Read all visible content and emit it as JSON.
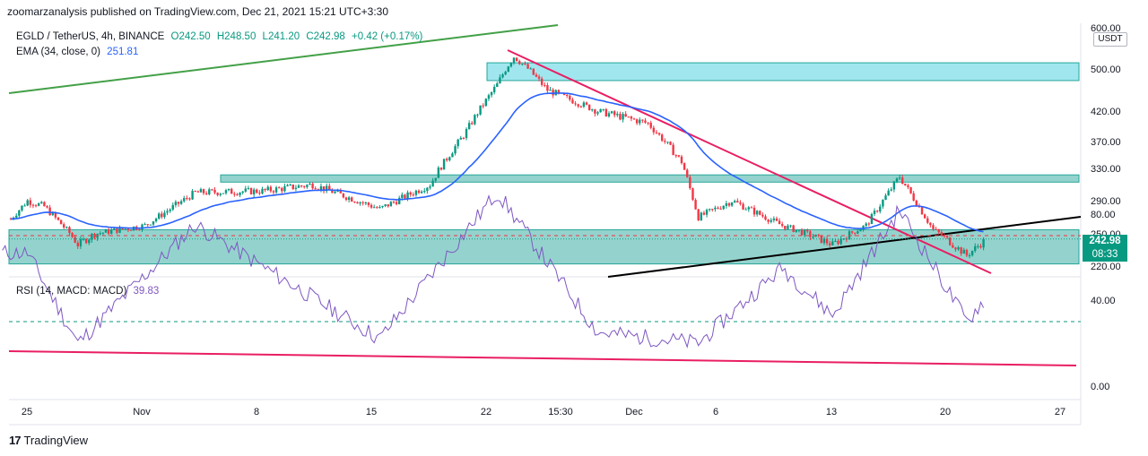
{
  "header": {
    "publisher_line": "zoomarzanalysis published on TradingView.com, Dec 21, 2021 15:21 UTC+3:30"
  },
  "legend": {
    "symbol": "EGLD / TetherUS, 4h, BINANCE",
    "open": "O242.50",
    "high": "H248.50",
    "low": "L241.20",
    "close": "C242.98",
    "change": "+0.42 (+0.17%)",
    "ema_label": "EMA (34, close, 0)",
    "ema_value": "251.81",
    "rsi_label": "RSI (14, MACD: MACD)",
    "rsi_value": "39.83"
  },
  "price_axis": {
    "currency": "USDT",
    "current_price": "242.98",
    "countdown": "08:33",
    "ticks": [
      "600.00",
      "500.00",
      "420.00",
      "370.00",
      "330.00",
      "290.00",
      "250.00",
      "220.00"
    ]
  },
  "rsi_axis": {
    "ticks": [
      "80.00",
      "40.00",
      "0.00"
    ]
  },
  "time_axis": {
    "ticks": [
      "25",
      "Nov",
      "8",
      "15",
      "22",
      "15:30",
      "Dec",
      "6",
      "13",
      "20",
      "27"
    ]
  },
  "footer": {
    "brand": "TradingView"
  },
  "colors": {
    "up": "#089981",
    "down": "#f23645",
    "ema": "#2962ff",
    "rsi": "#7e57c2",
    "zone_cyan": "#80deea",
    "zone_teal": "#4db6ac",
    "trend_pink": "#e91e63",
    "trend_green": "#43a047",
    "trend_black": "#000000"
  },
  "chart_data": {
    "type": "candlestick",
    "symbol": "EGLD / TetherUS",
    "interval": "4h",
    "ylim": [
      215,
      600
    ],
    "price_key_points": [
      {
        "x": "Oct 24",
        "close": 268
      },
      {
        "x": "Oct 25",
        "close": 290
      },
      {
        "x": "Oct 26",
        "close": 283
      },
      {
        "x": "Oct 27",
        "close": 262
      },
      {
        "x": "Oct 28",
        "close": 240
      },
      {
        "x": "Oct 29",
        "close": 250
      },
      {
        "x": "Nov 1",
        "close": 260
      },
      {
        "x": "Nov 4",
        "close": 300
      },
      {
        "x": "Nov 8",
        "close": 302
      },
      {
        "x": "Nov 11",
        "close": 310
      },
      {
        "x": "Nov 15",
        "close": 280
      },
      {
        "x": "Nov 18",
        "close": 310
      },
      {
        "x": "Nov 20",
        "close": 380
      },
      {
        "x": "Nov 22",
        "close": 470
      },
      {
        "x": "Nov 23",
        "close": 530
      },
      {
        "x": "Nov 25",
        "close": 460
      },
      {
        "x": "Nov 28",
        "close": 420
      },
      {
        "x": "Dec 1",
        "close": 400
      },
      {
        "x": "Dec 3",
        "close": 340
      },
      {
        "x": "Dec 4",
        "close": 270
      },
      {
        "x": "Dec 6",
        "close": 290
      },
      {
        "x": "Dec 9",
        "close": 260
      },
      {
        "x": "Dec 12",
        "close": 240
      },
      {
        "x": "Dec 14",
        "close": 260
      },
      {
        "x": "Dec 16",
        "close": 320
      },
      {
        "x": "Dec 18",
        "close": 255
      },
      {
        "x": "Dec 20",
        "close": 230
      },
      {
        "x": "Dec 21",
        "close": 242.98
      }
    ],
    "zones": [
      {
        "low": 478,
        "high": 515
      },
      {
        "low": 313,
        "high": 322
      },
      {
        "low": 222,
        "high": 255
      }
    ],
    "rsi_levels": [
      70,
      30
    ],
    "rsi_key_points": [
      {
        "x": "Oct 25",
        "value": 62
      },
      {
        "x": "Oct 28",
        "value": 20
      },
      {
        "x": "Nov 4",
        "value": 75
      },
      {
        "x": "Nov 15",
        "value": 22
      },
      {
        "x": "Nov 22",
        "value": 90
      },
      {
        "x": "Nov 28",
        "value": 25
      },
      {
        "x": "Dec 4",
        "value": 20
      },
      {
        "x": "Dec 9",
        "value": 55
      },
      {
        "x": "Dec 12",
        "value": 33
      },
      {
        "x": "Dec 16",
        "value": 82
      },
      {
        "x": "Dec 20",
        "value": 30
      },
      {
        "x": "Dec 21",
        "value": 39.83
      }
    ]
  }
}
